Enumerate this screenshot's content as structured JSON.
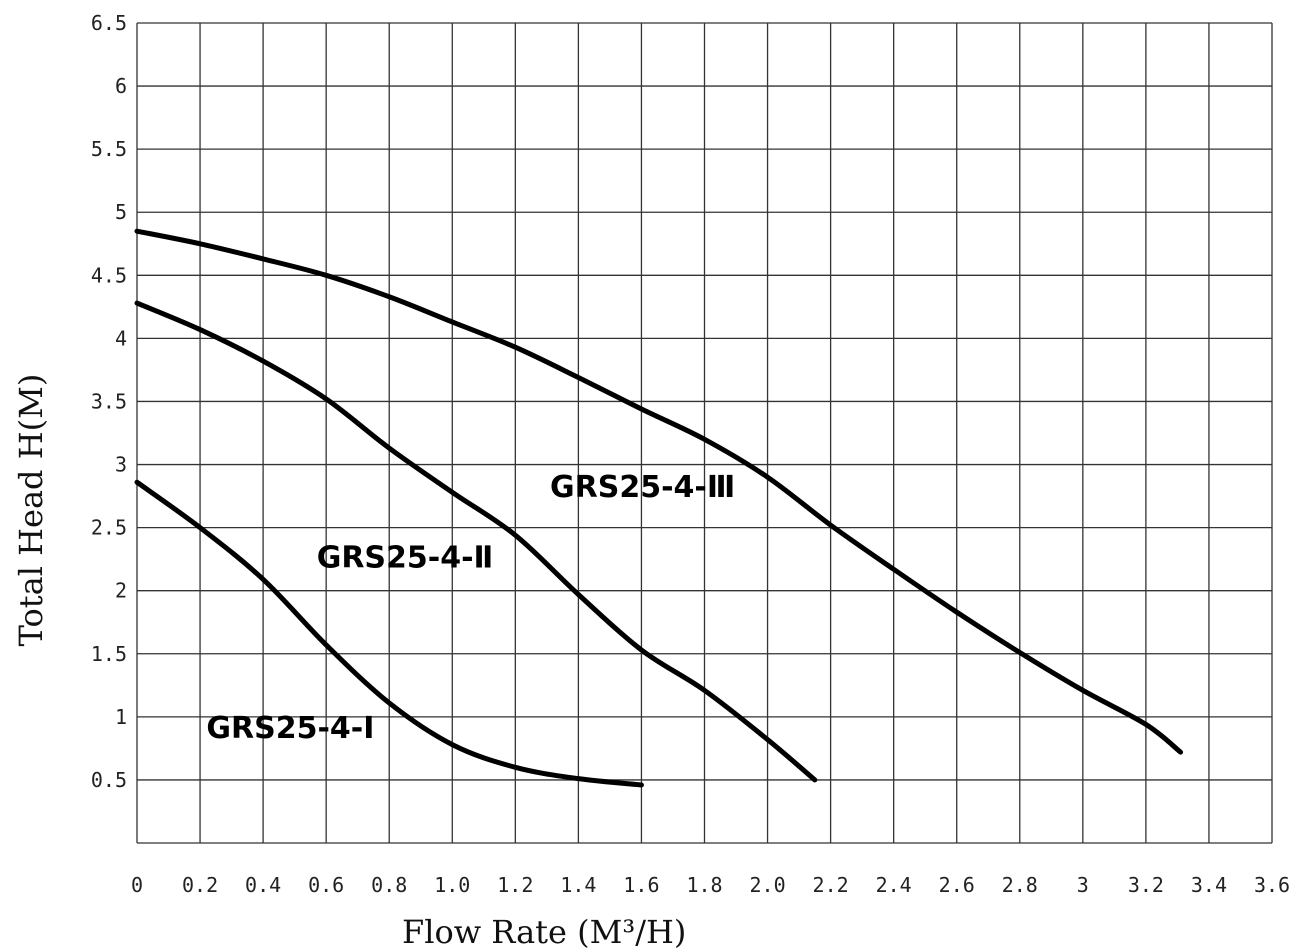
{
  "chart_data": {
    "type": "line",
    "xlabel": "Flow Rate (M³/H)",
    "ylabel": "Total Head H(M)",
    "xlim": [
      0,
      3.6
    ],
    "ylim": [
      0,
      6.5
    ],
    "grid": true,
    "x_tick_labels": [
      "0",
      "0.2",
      "0.4",
      "0.6",
      "0.8",
      "1.0",
      "1.2",
      "1.4",
      "1.6",
      "1.8",
      "2.0",
      "2.2",
      "2.4",
      "2.6",
      "2.8",
      "3",
      "3.2",
      "3.4",
      "3.6"
    ],
    "y_tick_labels": [
      "6.5",
      "6",
      "5.5",
      "5",
      "4.5",
      "4",
      "3.5",
      "3",
      "2.5",
      "2",
      "1.5",
      "1",
      "0.5"
    ],
    "line_color": "#000000",
    "series": [
      {
        "name": "GRS25-4-Ⅰ",
        "x": [
          0,
          0.2,
          0.4,
          0.6,
          0.8,
          1.0,
          1.2,
          1.4,
          1.6
        ],
        "y": [
          2.86,
          2.5,
          2.09,
          1.57,
          1.11,
          0.78,
          0.6,
          0.51,
          0.46
        ],
        "label_at": [
          0.22,
          0.92
        ]
      },
      {
        "name": "GRS25-4-Ⅱ",
        "x": [
          0,
          0.2,
          0.4,
          0.6,
          0.8,
          1.0,
          1.2,
          1.4,
          1.6,
          1.8,
          2.0,
          2.15
        ],
        "y": [
          4.28,
          4.07,
          3.82,
          3.52,
          3.13,
          2.78,
          2.44,
          1.97,
          1.53,
          1.21,
          0.82,
          0.5
        ],
        "label_at": [
          0.57,
          2.27
        ]
      },
      {
        "name": "GRS25-4-Ⅲ",
        "x": [
          0,
          0.2,
          0.4,
          0.6,
          0.8,
          1.0,
          1.2,
          1.4,
          1.6,
          1.8,
          2.0,
          2.2,
          2.4,
          2.6,
          2.8,
          3.0,
          3.2,
          3.31
        ],
        "y": [
          4.85,
          4.75,
          4.63,
          4.5,
          4.33,
          4.13,
          3.93,
          3.69,
          3.44,
          3.2,
          2.9,
          2.52,
          2.17,
          1.83,
          1.51,
          1.21,
          0.94,
          0.72
        ],
        "label_at": [
          1.31,
          2.83
        ]
      }
    ]
  }
}
